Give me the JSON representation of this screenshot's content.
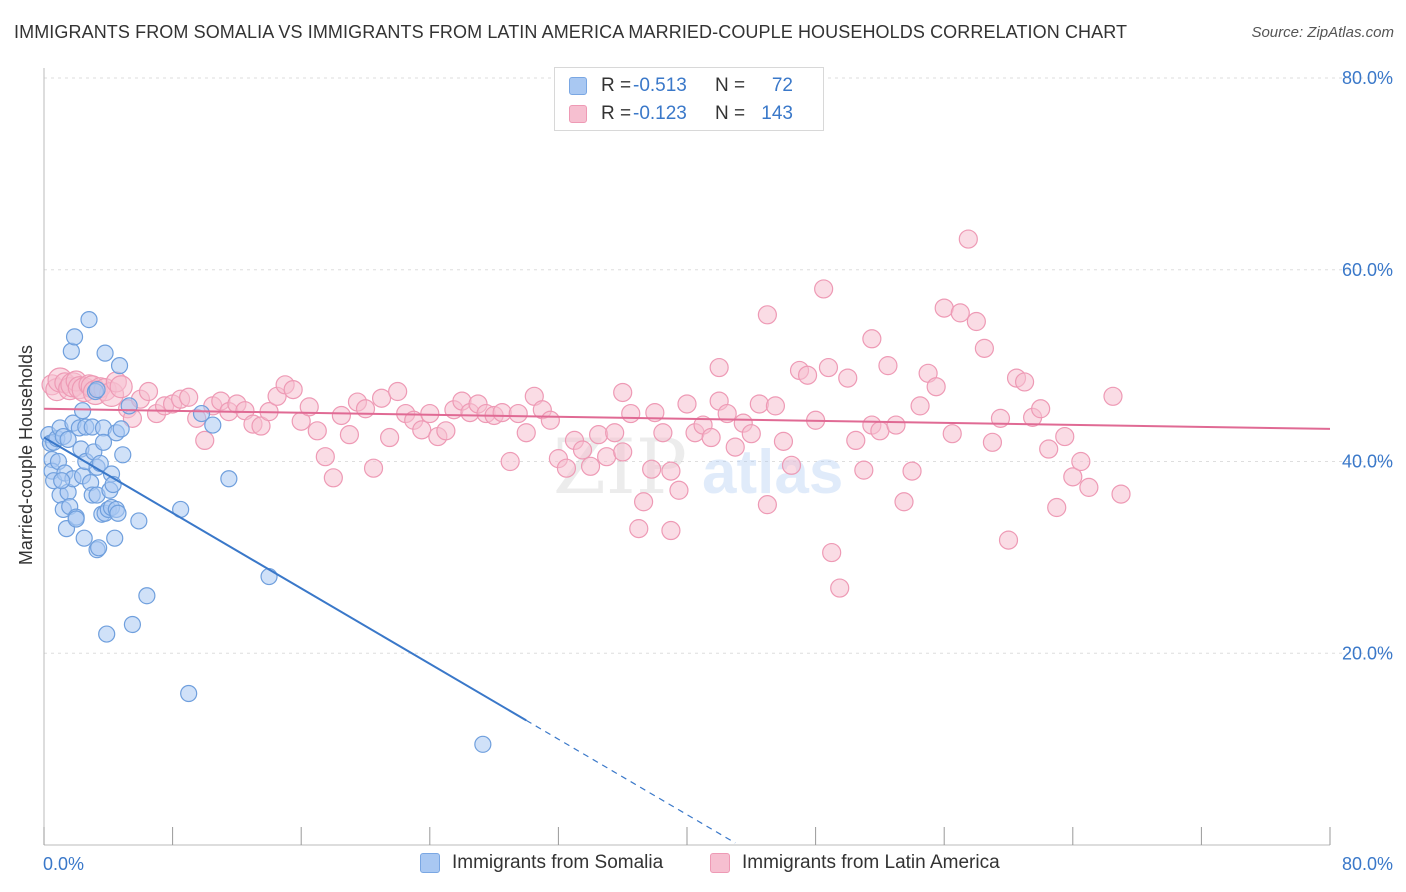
{
  "title": "IMMIGRANTS FROM SOMALIA VS IMMIGRANTS FROM LATIN AMERICA MARRIED-COUPLE HOUSEHOLDS CORRELATION CHART",
  "source": "Source: ZipAtlas.com",
  "colors": {
    "somalia": "#3a78c9",
    "latin_america": "#e06a94",
    "somalia_fill": "#a9c8f2",
    "latin_fill": "#f6bfd0"
  },
  "legend_top": {
    "rows": [
      {
        "r_label": "R =",
        "r_value": "-0.513",
        "n_label": "N =",
        "n_value": "72"
      },
      {
        "r_label": "R =",
        "r_value": "-0.123",
        "n_label": "N =",
        "n_value": "143"
      }
    ]
  },
  "legend_bottom": {
    "somalia": "Immigrants from Somalia",
    "latin_america": "Immigrants from Latin America"
  },
  "watermark": {
    "zip": "ZIP",
    "atlas": "atlas"
  },
  "chart_data": {
    "type": "scatter",
    "ylabel": "Married-couple Households",
    "xlabel": "",
    "xlim": [
      0,
      80
    ],
    "ylim": [
      0,
      80
    ],
    "x_tick_labels": [
      "0.0%",
      "80.0%"
    ],
    "y_tick_labels": [
      "20.0%",
      "40.0%",
      "60.0%",
      "80.0%"
    ],
    "y_ticks": [
      20,
      40,
      60,
      80
    ],
    "grid": true,
    "series": [
      {
        "name": "Immigrants from Somalia",
        "trend": {
          "x0": 0,
          "y0": 42.5,
          "x1": 30,
          "y1": 13.0,
          "dash_to_x": 43
        },
        "points": [
          [
            0.3,
            42.8
          ],
          [
            0.4,
            41.9
          ],
          [
            0.5,
            40.2
          ],
          [
            0.5,
            39.0
          ],
          [
            0.6,
            42.0
          ],
          [
            0.6,
            38.0
          ],
          [
            0.8,
            42.4
          ],
          [
            0.9,
            40.0
          ],
          [
            1.0,
            43.5
          ],
          [
            1.0,
            36.5
          ],
          [
            1.2,
            42.6
          ],
          [
            1.2,
            35.0
          ],
          [
            1.3,
            38.8
          ],
          [
            1.4,
            33.0
          ],
          [
            1.5,
            36.8
          ],
          [
            1.5,
            42.3
          ],
          [
            1.6,
            35.3
          ],
          [
            1.7,
            51.5
          ],
          [
            1.8,
            44.0
          ],
          [
            1.8,
            38.2
          ],
          [
            1.9,
            53.0
          ],
          [
            2.0,
            34.2
          ],
          [
            2.2,
            43.5
          ],
          [
            2.3,
            41.3
          ],
          [
            2.4,
            38.5
          ],
          [
            2.4,
            45.3
          ],
          [
            2.5,
            32.0
          ],
          [
            2.6,
            40.0
          ],
          [
            2.6,
            43.6
          ],
          [
            2.8,
            54.8
          ],
          [
            2.9,
            37.8
          ],
          [
            3.0,
            36.5
          ],
          [
            3.0,
            43.6
          ],
          [
            3.1,
            41.0
          ],
          [
            3.2,
            47.3
          ],
          [
            3.3,
            39.4
          ],
          [
            3.3,
            36.5
          ],
          [
            3.3,
            30.8
          ],
          [
            3.4,
            31.0
          ],
          [
            3.5,
            39.8
          ],
          [
            3.6,
            34.5
          ],
          [
            3.7,
            43.5
          ],
          [
            3.7,
            42.0
          ],
          [
            3.8,
            51.3
          ],
          [
            3.8,
            34.6
          ],
          [
            3.9,
            22.0
          ],
          [
            4.0,
            35.0
          ],
          [
            4.1,
            37.0
          ],
          [
            4.2,
            38.7
          ],
          [
            4.2,
            35.2
          ],
          [
            4.3,
            37.6
          ],
          [
            4.4,
            32.0
          ],
          [
            4.5,
            35.0
          ],
          [
            4.5,
            43.0
          ],
          [
            4.6,
            34.6
          ],
          [
            4.7,
            50.0
          ],
          [
            4.8,
            43.4
          ],
          [
            4.9,
            40.7
          ],
          [
            5.3,
            45.8
          ],
          [
            5.5,
            23.0
          ],
          [
            5.9,
            33.8
          ],
          [
            6.4,
            26.0
          ],
          [
            8.5,
            35.0
          ],
          [
            9.0,
            15.8
          ],
          [
            9.8,
            45.0
          ],
          [
            10.5,
            43.8
          ],
          [
            11.5,
            38.2
          ],
          [
            14.0,
            28.0
          ],
          [
            27.3,
            10.5
          ],
          [
            3.3,
            47.5
          ],
          [
            2.0,
            34.0
          ],
          [
            1.1,
            38.0
          ]
        ]
      },
      {
        "name": "Immigrants from Latin America",
        "trend": {
          "x0": 0,
          "y0": 45.5,
          "x1": 80,
          "y1": 43.4
        },
        "points": [
          [
            0.5,
            48.0
          ],
          [
            0.8,
            47.5
          ],
          [
            1.0,
            48.5
          ],
          [
            1.3,
            48.2
          ],
          [
            1.6,
            47.6
          ],
          [
            1.8,
            48.0
          ],
          [
            2.0,
            48.4
          ],
          [
            2.2,
            47.7
          ],
          [
            2.5,
            47.5
          ],
          [
            2.8,
            48.0
          ],
          [
            3.0,
            47.8
          ],
          [
            3.2,
            47.2
          ],
          [
            3.5,
            47.7
          ],
          [
            3.8,
            47.5
          ],
          [
            4.2,
            47.0
          ],
          [
            4.5,
            48.3
          ],
          [
            4.8,
            47.8
          ],
          [
            5.2,
            45.5
          ],
          [
            5.5,
            44.5
          ],
          [
            6.0,
            46.5
          ],
          [
            6.5,
            47.3
          ],
          [
            7.0,
            45.0
          ],
          [
            7.5,
            45.8
          ],
          [
            8.0,
            46.0
          ],
          [
            8.5,
            46.5
          ],
          [
            9.0,
            46.7
          ],
          [
            9.5,
            44.5
          ],
          [
            10.0,
            42.2
          ],
          [
            10.5,
            45.8
          ],
          [
            11.0,
            46.3
          ],
          [
            11.5,
            45.2
          ],
          [
            12.0,
            46.0
          ],
          [
            12.5,
            45.3
          ],
          [
            13.0,
            43.9
          ],
          [
            13.5,
            43.7
          ],
          [
            14.0,
            45.2
          ],
          [
            14.5,
            46.8
          ],
          [
            15.0,
            48.0
          ],
          [
            15.5,
            47.5
          ],
          [
            16.0,
            44.2
          ],
          [
            16.5,
            45.7
          ],
          [
            17.0,
            43.2
          ],
          [
            17.5,
            40.5
          ],
          [
            18.0,
            38.3
          ],
          [
            18.5,
            44.8
          ],
          [
            19.0,
            42.8
          ],
          [
            19.5,
            46.2
          ],
          [
            20.0,
            45.5
          ],
          [
            20.5,
            39.3
          ],
          [
            21.0,
            46.6
          ],
          [
            21.5,
            42.5
          ],
          [
            22.0,
            47.3
          ],
          [
            22.5,
            45.0
          ],
          [
            23.0,
            44.3
          ],
          [
            23.5,
            43.3
          ],
          [
            24.0,
            45.0
          ],
          [
            24.5,
            42.6
          ],
          [
            25.0,
            43.2
          ],
          [
            25.5,
            45.4
          ],
          [
            26.0,
            46.3
          ],
          [
            26.5,
            45.1
          ],
          [
            27.0,
            46.0
          ],
          [
            27.5,
            45.0
          ],
          [
            28.0,
            44.8
          ],
          [
            28.5,
            45.1
          ],
          [
            29.0,
            40.0
          ],
          [
            29.5,
            45.0
          ],
          [
            30.0,
            43.0
          ],
          [
            30.5,
            46.8
          ],
          [
            31.0,
            45.4
          ],
          [
            31.5,
            44.3
          ],
          [
            32.0,
            40.3
          ],
          [
            32.5,
            39.3
          ],
          [
            33.0,
            42.2
          ],
          [
            33.5,
            41.2
          ],
          [
            34.0,
            39.5
          ],
          [
            34.5,
            42.8
          ],
          [
            35.0,
            40.5
          ],
          [
            35.5,
            43.0
          ],
          [
            36.0,
            47.2
          ],
          [
            36.5,
            45.0
          ],
          [
            37.0,
            33.0
          ],
          [
            37.3,
            35.8
          ],
          [
            37.8,
            39.2
          ],
          [
            38.0,
            45.1
          ],
          [
            38.5,
            43.0
          ],
          [
            39.0,
            39.0
          ],
          [
            39.5,
            37.0
          ],
          [
            40.0,
            46.0
          ],
          [
            40.5,
            43.0
          ],
          [
            41.0,
            43.8
          ],
          [
            41.5,
            42.5
          ],
          [
            42.0,
            46.3
          ],
          [
            42.5,
            45.0
          ],
          [
            43.0,
            41.5
          ],
          [
            43.5,
            44.0
          ],
          [
            44.0,
            42.9
          ],
          [
            44.5,
            46.0
          ],
          [
            45.0,
            35.5
          ],
          [
            45.5,
            45.8
          ],
          [
            46.0,
            42.1
          ],
          [
            46.5,
            39.6
          ],
          [
            47.0,
            49.5
          ],
          [
            47.5,
            49.0
          ],
          [
            48.0,
            44.3
          ],
          [
            48.5,
            58.0
          ],
          [
            48.8,
            49.8
          ],
          [
            49.0,
            30.5
          ],
          [
            49.5,
            26.8
          ],
          [
            50.0,
            48.7
          ],
          [
            50.5,
            42.2
          ],
          [
            51.0,
            39.1
          ],
          [
            51.5,
            43.8
          ],
          [
            52.0,
            43.2
          ],
          [
            52.5,
            50.0
          ],
          [
            53.0,
            43.8
          ],
          [
            53.5,
            35.8
          ],
          [
            54.0,
            39.0
          ],
          [
            54.5,
            45.8
          ],
          [
            55.0,
            49.2
          ],
          [
            55.5,
            47.8
          ],
          [
            56.0,
            56.0
          ],
          [
            56.5,
            42.9
          ],
          [
            57.0,
            55.5
          ],
          [
            57.5,
            63.2
          ],
          [
            58.0,
            54.6
          ],
          [
            58.5,
            51.8
          ],
          [
            59.0,
            42.0
          ],
          [
            59.5,
            44.5
          ],
          [
            60.0,
            31.8
          ],
          [
            60.5,
            48.7
          ],
          [
            61.0,
            48.3
          ],
          [
            61.5,
            44.6
          ],
          [
            62.0,
            45.5
          ],
          [
            62.5,
            41.3
          ],
          [
            63.0,
            35.2
          ],
          [
            63.5,
            42.6
          ],
          [
            64.0,
            38.4
          ],
          [
            64.5,
            40.0
          ],
          [
            65.0,
            37.3
          ],
          [
            66.5,
            46.8
          ],
          [
            67.0,
            36.6
          ],
          [
            51.5,
            52.8
          ],
          [
            45.0,
            55.3
          ],
          [
            39.0,
            32.8
          ],
          [
            36.0,
            41.0
          ],
          [
            42.0,
            49.8
          ]
        ]
      }
    ]
  }
}
